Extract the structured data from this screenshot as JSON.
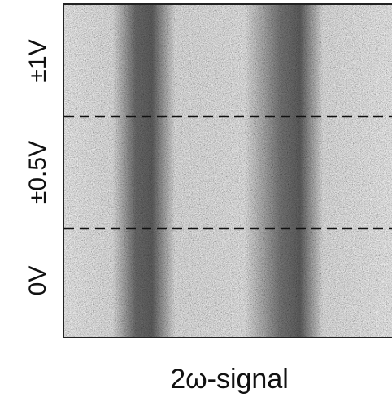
{
  "panel": {
    "row_labels": [
      "±1V",
      "±0.5V",
      "0V"
    ],
    "caption": "2ω-signal"
  }
}
